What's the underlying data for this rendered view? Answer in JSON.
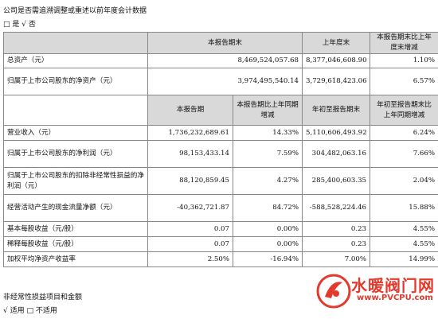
{
  "top_note": "公司是否需追溯调整或重述以前年度会计数据",
  "top_choice": "□ 是 √ 否",
  "table1": {
    "header": [
      "",
      "本报告期末",
      "上年度末",
      "本报告期末比上年度末增减"
    ],
    "rows": [
      {
        "label": "总资产（元）",
        "values": [
          "8,469,524,057.68",
          "8,377,046,608.90",
          "1.10%"
        ]
      },
      {
        "label": "归属于上市公司股东的净资产（元）",
        "values": [
          "3,974,495,540.14",
          "3,729,618,423.06",
          "6.57%"
        ]
      }
    ]
  },
  "table2": {
    "header": [
      "",
      "本报告期",
      "本报告期比上年同期增减",
      "年初至报告期末",
      "年初至报告期末比上年同期增减"
    ],
    "rows": [
      {
        "label": "营业收入（元）",
        "values": [
          "1,736,232,689.61",
          "14.33%",
          "5,110,606,493.92",
          "6.24%"
        ]
      },
      {
        "label": "归属于上市公司股东的净利润（元）",
        "values": [
          "98,153,433.14",
          "7.59%",
          "304,482,063.16",
          "7.66%"
        ]
      },
      {
        "label": "归属于上市公司股东的扣除非经常性损益的净利润（元）",
        "values": [
          "88,120,859.45",
          "4.27%",
          "285,400,603.35",
          "2.04%"
        ]
      },
      {
        "label": "经营活动产生的现金流量净额（元）",
        "values": [
          "-40,362,721.87",
          "84.72%",
          "-588,528,224.46",
          "15.88%"
        ]
      },
      {
        "label": "基本每股收益（元/股）",
        "values": [
          "0.07",
          "0.00%",
          "0.23",
          "4.55%"
        ]
      },
      {
        "label": "稀释每股收益（元/股）",
        "values": [
          "0.07",
          "0.00%",
          "0.23",
          "4.55%"
        ]
      },
      {
        "label": "加权平均净资产收益率",
        "values": [
          "2.50%",
          "-16.94%",
          "7.00%",
          "14.99%"
        ]
      }
    ]
  },
  "bottom_note": "非经常性损益项目和金额",
  "bottom_choice": "√ 适用 □ 不适用",
  "watermark": {
    "text": "水暖阀门网",
    "url": "www.PVCPU.com"
  }
}
